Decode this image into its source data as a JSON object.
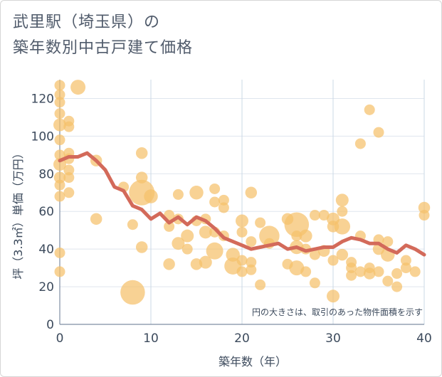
{
  "title_line1": "武里駅（埼玉県）の",
  "title_line2": "築年数別中古戸建て価格",
  "chart_data": {
    "type": "scatter",
    "xlabel": "築年数（年）",
    "ylabel": "坪（3.3㎡）単価（万円）",
    "xlim": [
      0,
      40
    ],
    "ylim": [
      0,
      130
    ],
    "xticks": [
      0,
      10,
      20,
      30,
      40
    ],
    "yticks": [
      0,
      20,
      40,
      60,
      80,
      100,
      120
    ],
    "grid": true,
    "annotation": "円の大きさは、取引のあった物件面積を示す",
    "bubble_color": "#f5c06b",
    "line_color": "#d36a5a",
    "points": [
      {
        "x": 0,
        "y": 127,
        "s": 1
      },
      {
        "x": 0,
        "y": 122,
        "s": 1
      },
      {
        "x": 0,
        "y": 118,
        "s": 1
      },
      {
        "x": 0,
        "y": 112,
        "s": 1
      },
      {
        "x": 0,
        "y": 106,
        "s": 1.2
      },
      {
        "x": 0,
        "y": 98,
        "s": 1
      },
      {
        "x": 0,
        "y": 90,
        "s": 1
      },
      {
        "x": 0,
        "y": 85,
        "s": 1.2
      },
      {
        "x": 0,
        "y": 78,
        "s": 1.1
      },
      {
        "x": 0,
        "y": 74,
        "s": 1
      },
      {
        "x": 0,
        "y": 68,
        "s": 1
      },
      {
        "x": 0,
        "y": 38,
        "s": 1
      },
      {
        "x": 0,
        "y": 28,
        "s": 1
      },
      {
        "x": 1,
        "y": 108,
        "s": 1
      },
      {
        "x": 1,
        "y": 105,
        "s": 1
      },
      {
        "x": 1,
        "y": 91,
        "s": 1
      },
      {
        "x": 1,
        "y": 88,
        "s": 1
      },
      {
        "x": 1,
        "y": 82,
        "s": 1
      },
      {
        "x": 1,
        "y": 78,
        "s": 1
      },
      {
        "x": 1,
        "y": 70,
        "s": 1
      },
      {
        "x": 2,
        "y": 126,
        "s": 1.4
      },
      {
        "x": 4,
        "y": 87,
        "s": 1.1
      },
      {
        "x": 4,
        "y": 56,
        "s": 1.1
      },
      {
        "x": 7,
        "y": 73,
        "s": 1
      },
      {
        "x": 8,
        "y": 53,
        "s": 1
      },
      {
        "x": 8,
        "y": 17,
        "s": 2.3
      },
      {
        "x": 9,
        "y": 91,
        "s": 1.1
      },
      {
        "x": 9,
        "y": 78,
        "s": 1.1
      },
      {
        "x": 9,
        "y": 70,
        "s": 2.4
      },
      {
        "x": 9,
        "y": 41,
        "s": 1.1
      },
      {
        "x": 10,
        "y": 68,
        "s": 1.3
      },
      {
        "x": 12,
        "y": 58,
        "s": 1
      },
      {
        "x": 12,
        "y": 52,
        "s": 1
      },
      {
        "x": 12,
        "y": 32,
        "s": 1.1
      },
      {
        "x": 13,
        "y": 69,
        "s": 1
      },
      {
        "x": 13,
        "y": 56,
        "s": 1
      },
      {
        "x": 13,
        "y": 43,
        "s": 1.2
      },
      {
        "x": 14,
        "y": 47,
        "s": 1.2
      },
      {
        "x": 14,
        "y": 40,
        "s": 1
      },
      {
        "x": 15,
        "y": 70,
        "s": 1.3
      },
      {
        "x": 15,
        "y": 55,
        "s": 1
      },
      {
        "x": 15,
        "y": 32,
        "s": 1.1
      },
      {
        "x": 16,
        "y": 56,
        "s": 1
      },
      {
        "x": 16,
        "y": 49,
        "s": 1.2
      },
      {
        "x": 16,
        "y": 33,
        "s": 1.2
      },
      {
        "x": 17,
        "y": 72,
        "s": 1
      },
      {
        "x": 17,
        "y": 65,
        "s": 1
      },
      {
        "x": 17,
        "y": 49,
        "s": 1
      },
      {
        "x": 17,
        "y": 39,
        "s": 1.6
      },
      {
        "x": 18,
        "y": 66,
        "s": 1
      },
      {
        "x": 18,
        "y": 62,
        "s": 1
      },
      {
        "x": 18,
        "y": 47,
        "s": 1
      },
      {
        "x": 19,
        "y": 37,
        "s": 1.3
      },
      {
        "x": 19,
        "y": 31,
        "s": 1.6
      },
      {
        "x": 20,
        "y": 55,
        "s": 1.2
      },
      {
        "x": 20,
        "y": 49,
        "s": 1
      },
      {
        "x": 20,
        "y": 34,
        "s": 1
      },
      {
        "x": 20,
        "y": 28,
        "s": 1
      },
      {
        "x": 21,
        "y": 70,
        "s": 1.1
      },
      {
        "x": 21,
        "y": 44,
        "s": 1
      },
      {
        "x": 21,
        "y": 33,
        "s": 1
      },
      {
        "x": 21,
        "y": 29,
        "s": 1
      },
      {
        "x": 22,
        "y": 54,
        "s": 1
      },
      {
        "x": 22,
        "y": 21,
        "s": 1
      },
      {
        "x": 23,
        "y": 47,
        "s": 1.9
      },
      {
        "x": 23,
        "y": 43,
        "s": 1
      },
      {
        "x": 25,
        "y": 56,
        "s": 1.1
      },
      {
        "x": 25,
        "y": 32,
        "s": 1
      },
      {
        "x": 26,
        "y": 53,
        "s": 2.3
      },
      {
        "x": 26,
        "y": 47,
        "s": 1
      },
      {
        "x": 26,
        "y": 41,
        "s": 1.3
      },
      {
        "x": 26,
        "y": 30,
        "s": 1.4
      },
      {
        "x": 27,
        "y": 47,
        "s": 1.2
      },
      {
        "x": 27,
        "y": 40,
        "s": 1
      },
      {
        "x": 27,
        "y": 28,
        "s": 1
      },
      {
        "x": 28,
        "y": 58,
        "s": 1
      },
      {
        "x": 28,
        "y": 37,
        "s": 1
      },
      {
        "x": 28,
        "y": 22,
        "s": 1
      },
      {
        "x": 29,
        "y": 58,
        "s": 1
      },
      {
        "x": 29,
        "y": 39,
        "s": 1.1
      },
      {
        "x": 30,
        "y": 56,
        "s": 1.2
      },
      {
        "x": 30,
        "y": 52,
        "s": 1.1
      },
      {
        "x": 30,
        "y": 34,
        "s": 1
      },
      {
        "x": 30,
        "y": 15,
        "s": 1.2
      },
      {
        "x": 31,
        "y": 66,
        "s": 1.2
      },
      {
        "x": 31,
        "y": 60,
        "s": 1
      },
      {
        "x": 31,
        "y": 52,
        "s": 1.5
      },
      {
        "x": 31,
        "y": 37,
        "s": 1.1
      },
      {
        "x": 32,
        "y": 33,
        "s": 1
      },
      {
        "x": 32,
        "y": 30,
        "s": 1
      },
      {
        "x": 32,
        "y": 26,
        "s": 1
      },
      {
        "x": 33,
        "y": 96,
        "s": 1
      },
      {
        "x": 33,
        "y": 47,
        "s": 1
      },
      {
        "x": 33,
        "y": 28,
        "s": 1
      },
      {
        "x": 34,
        "y": 114,
        "s": 1
      },
      {
        "x": 34,
        "y": 30,
        "s": 1
      },
      {
        "x": 34,
        "y": 27,
        "s": 1.1
      },
      {
        "x": 35,
        "y": 102,
        "s": 1
      },
      {
        "x": 35,
        "y": 45,
        "s": 1
      },
      {
        "x": 35,
        "y": 40,
        "s": 1.1
      },
      {
        "x": 35,
        "y": 28,
        "s": 1
      },
      {
        "x": 36,
        "y": 44,
        "s": 1
      },
      {
        "x": 36,
        "y": 37,
        "s": 1.3
      },
      {
        "x": 36,
        "y": 23,
        "s": 1
      },
      {
        "x": 37,
        "y": 27,
        "s": 1
      },
      {
        "x": 37,
        "y": 20,
        "s": 1
      },
      {
        "x": 38,
        "y": 34,
        "s": 1
      },
      {
        "x": 38,
        "y": 30,
        "s": 1
      },
      {
        "x": 39,
        "y": 28,
        "s": 1
      },
      {
        "x": 40,
        "y": 62,
        "s": 1.1
      },
      {
        "x": 40,
        "y": 58,
        "s": 1
      }
    ],
    "line": {
      "x": [
        0,
        1,
        2,
        3,
        4,
        5,
        6,
        7,
        8,
        9,
        10,
        11,
        12,
        13,
        14,
        15,
        16,
        17,
        18,
        19,
        20,
        21,
        22,
        23,
        24,
        25,
        26,
        27,
        28,
        29,
        30,
        31,
        32,
        33,
        34,
        35,
        36,
        37,
        38,
        39,
        40
      ],
      "y": [
        87,
        89,
        89,
        91,
        87,
        82,
        73,
        71,
        63,
        61,
        56,
        59,
        54,
        57,
        53,
        57,
        55,
        51,
        46,
        44,
        42,
        40,
        41,
        42,
        43,
        40,
        41,
        39,
        40,
        41,
        41,
        44,
        46,
        45,
        43,
        43,
        40,
        38,
        42,
        40,
        37
      ]
    }
  }
}
